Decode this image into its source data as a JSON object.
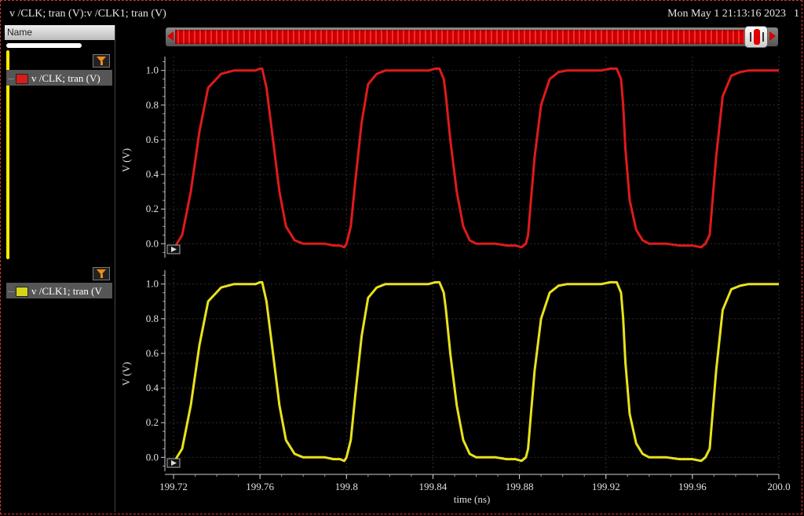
{
  "window": {
    "title": "v /CLK; tran (V):v /CLK1; tran (V)",
    "datetime": "Mon May 1 21:13:16 2023",
    "extra": "1"
  },
  "sidebar": {
    "header": "Name",
    "signals": [
      {
        "label": "v /CLK; tran (V)",
        "color": "#d81b1b"
      },
      {
        "label": "v /CLK1; tran (V",
        "color": "#e4e01a"
      }
    ]
  },
  "icons": {
    "filter": "filter-icon",
    "play": "play-icon",
    "scroll_left": "arrow-left-icon",
    "scroll_right": "arrow-right-icon"
  },
  "chart_data": [
    {
      "type": "line",
      "series": [
        {
          "name": "v /CLK; tran (V)",
          "color": "#e01a1a",
          "x": [
            199.718,
            199.721,
            199.724,
            199.728,
            199.732,
            199.736,
            199.742,
            199.748,
            199.752,
            199.756,
            199.758,
            199.76,
            199.761,
            199.763,
            199.766,
            199.769,
            199.772,
            199.776,
            199.78,
            199.786,
            199.79,
            199.794,
            199.797,
            199.799,
            199.8,
            199.802,
            199.804,
            199.807,
            199.81,
            199.814,
            199.818,
            199.822,
            199.828,
            199.834,
            199.838,
            199.841,
            199.843,
            199.845,
            199.846,
            199.848,
            199.851,
            199.854,
            199.857,
            199.86,
            199.864,
            199.869,
            199.874,
            199.878,
            199.881,
            199.883,
            199.884,
            199.885,
            199.887,
            199.89,
            199.894,
            199.898,
            199.902,
            199.906,
            199.912,
            199.918,
            199.922,
            199.925,
            199.927,
            199.928,
            199.929,
            199.931,
            199.934,
            199.937,
            199.94,
            199.944,
            199.948,
            199.954,
            199.96,
            199.964,
            199.966,
            199.968,
            199.969,
            199.971,
            199.974,
            199.978,
            199.982,
            199.986,
            199.991,
            199.996,
            200.0
          ],
          "y": [
            -0.02,
            -0.01,
            0.05,
            0.3,
            0.65,
            0.9,
            0.98,
            1.0,
            1.0,
            1.0,
            1.0,
            1.01,
            1.01,
            0.9,
            0.6,
            0.3,
            0.1,
            0.02,
            0.0,
            0.0,
            0.0,
            -0.01,
            -0.01,
            -0.02,
            0.0,
            0.1,
            0.35,
            0.7,
            0.92,
            0.98,
            1.0,
            1.0,
            1.0,
            1.0,
            1.0,
            1.01,
            1.01,
            0.95,
            0.85,
            0.6,
            0.3,
            0.1,
            0.02,
            0.0,
            0.0,
            0.0,
            -0.01,
            -0.01,
            -0.02,
            0.0,
            0.05,
            0.2,
            0.5,
            0.8,
            0.95,
            0.99,
            1.0,
            1.0,
            1.0,
            1.0,
            1.01,
            1.01,
            0.95,
            0.8,
            0.55,
            0.25,
            0.08,
            0.02,
            0.0,
            0.0,
            0.0,
            -0.01,
            -0.01,
            -0.02,
            0.0,
            0.05,
            0.2,
            0.5,
            0.85,
            0.97,
            0.99,
            1.0,
            1.0,
            1.0,
            1.0
          ]
        }
      ],
      "ylabel": "V (V)",
      "ylim": [
        -0.08,
        1.08
      ],
      "xlim": [
        199.716,
        200.0
      ],
      "yticks": [
        "0.0",
        "0.2",
        "0.4",
        "0.6",
        "0.8",
        "1.0"
      ],
      "grid": true
    },
    {
      "type": "line",
      "series": [
        {
          "name": "v /CLK1; tran (V",
          "color": "#e8e21c",
          "x": [
            199.718,
            199.721,
            199.724,
            199.728,
            199.732,
            199.736,
            199.742,
            199.748,
            199.752,
            199.756,
            199.758,
            199.76,
            199.761,
            199.763,
            199.766,
            199.769,
            199.772,
            199.776,
            199.78,
            199.786,
            199.79,
            199.794,
            199.797,
            199.799,
            199.8,
            199.802,
            199.804,
            199.807,
            199.81,
            199.814,
            199.818,
            199.822,
            199.828,
            199.834,
            199.838,
            199.841,
            199.843,
            199.845,
            199.846,
            199.848,
            199.851,
            199.854,
            199.857,
            199.86,
            199.864,
            199.869,
            199.874,
            199.878,
            199.881,
            199.883,
            199.884,
            199.885,
            199.887,
            199.89,
            199.894,
            199.898,
            199.902,
            199.906,
            199.912,
            199.918,
            199.922,
            199.925,
            199.927,
            199.928,
            199.929,
            199.931,
            199.934,
            199.937,
            199.94,
            199.944,
            199.948,
            199.954,
            199.96,
            199.964,
            199.966,
            199.968,
            199.969,
            199.971,
            199.974,
            199.978,
            199.982,
            199.986,
            199.991,
            199.996,
            200.0
          ],
          "y": [
            -0.02,
            -0.01,
            0.05,
            0.3,
            0.65,
            0.9,
            0.98,
            1.0,
            1.0,
            1.0,
            1.0,
            1.01,
            1.01,
            0.9,
            0.6,
            0.3,
            0.1,
            0.02,
            0.0,
            0.0,
            0.0,
            -0.01,
            -0.01,
            -0.02,
            0.0,
            0.1,
            0.35,
            0.7,
            0.92,
            0.98,
            1.0,
            1.0,
            1.0,
            1.0,
            1.0,
            1.01,
            1.01,
            0.95,
            0.85,
            0.6,
            0.3,
            0.1,
            0.02,
            0.0,
            0.0,
            0.0,
            -0.01,
            -0.01,
            -0.02,
            0.0,
            0.05,
            0.2,
            0.5,
            0.8,
            0.95,
            0.99,
            1.0,
            1.0,
            1.0,
            1.0,
            1.01,
            1.01,
            0.95,
            0.8,
            0.55,
            0.25,
            0.08,
            0.02,
            0.0,
            0.0,
            0.0,
            -0.01,
            -0.01,
            -0.02,
            0.0,
            0.05,
            0.2,
            0.5,
            0.85,
            0.97,
            0.99,
            1.0,
            1.0,
            1.0,
            1.0
          ]
        }
      ],
      "ylabel": "V (V)",
      "xlabel": "time (ns)",
      "ylim": [
        -0.08,
        1.08
      ],
      "xlim": [
        199.716,
        200.0
      ],
      "yticks": [
        "0.0",
        "0.2",
        "0.4",
        "0.6",
        "0.8",
        "1.0"
      ],
      "xticks": [
        "199.72",
        "199.76",
        "199.8",
        "199.84",
        "199.88",
        "199.92",
        "199.96",
        "200.0"
      ],
      "grid": true
    }
  ]
}
